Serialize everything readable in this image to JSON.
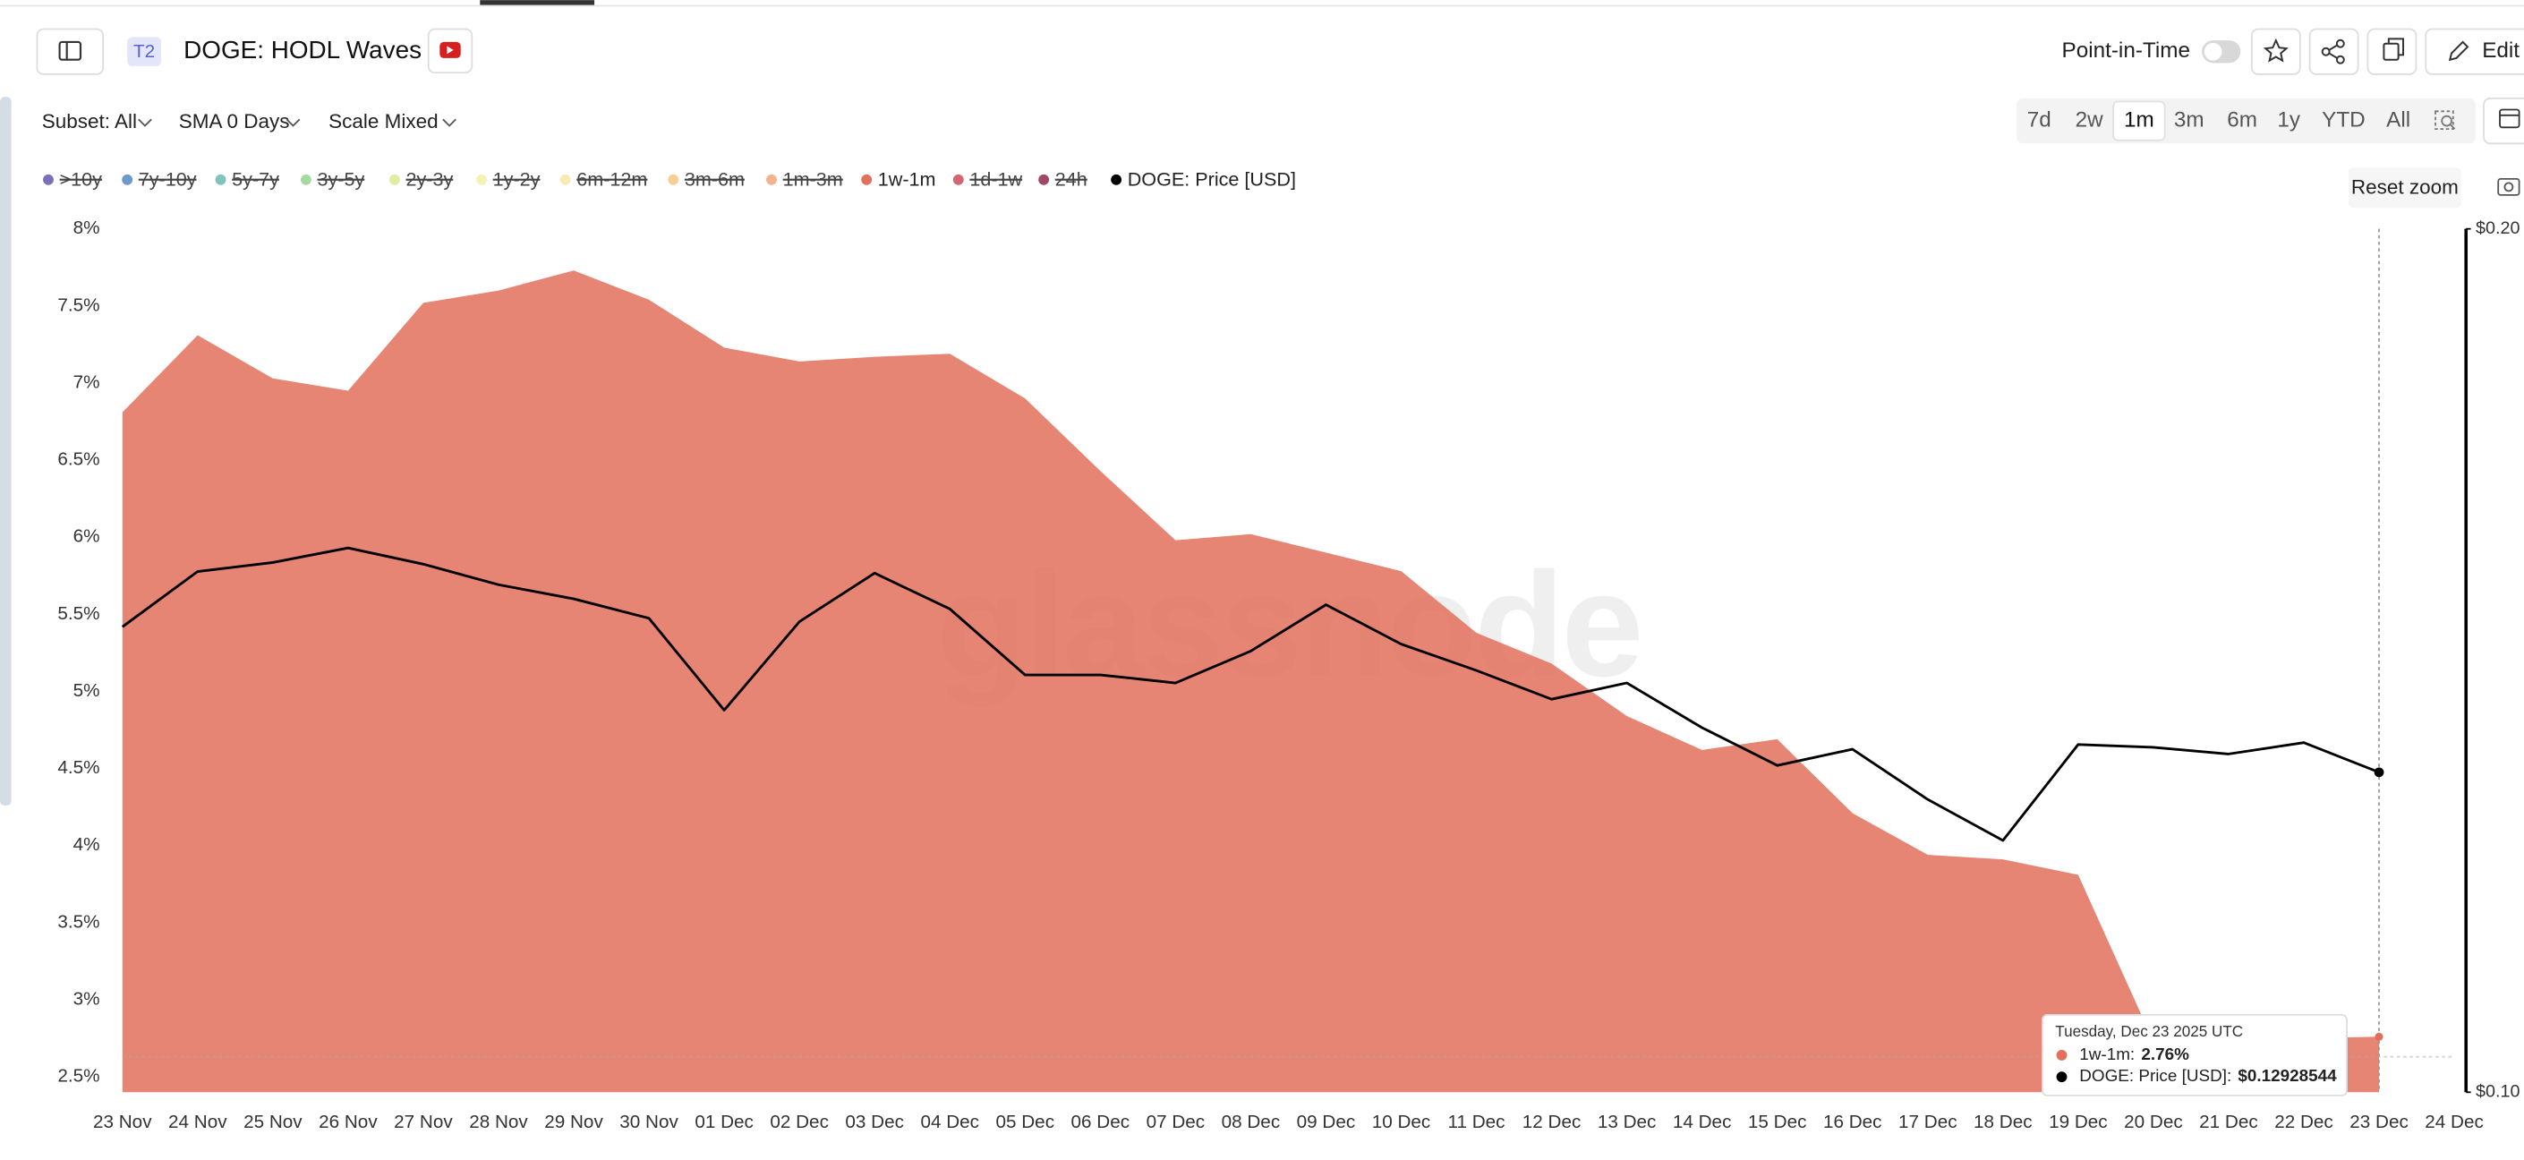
{
  "header": {
    "badge": "T2",
    "title": "DOGE: HODL Waves",
    "point_in_time": "Point-in-Time",
    "edit": "Edit"
  },
  "toolbar": {
    "subset": "Subset: All",
    "sma": "SMA 0 Days",
    "scale": "Scale Mixed",
    "ranges": [
      "7d",
      "2w",
      "1m",
      "3m",
      "6m",
      "1y",
      "YTD",
      "All"
    ],
    "active_range": "1m",
    "reset_zoom": "Reset zoom"
  },
  "chart_data": {
    "type": "area_line",
    "watermark": "glassnode",
    "categories": [
      "23 Nov",
      "24 Nov",
      "25 Nov",
      "26 Nov",
      "27 Nov",
      "28 Nov",
      "29 Nov",
      "30 Nov",
      "01 Dec",
      "02 Dec",
      "03 Dec",
      "04 Dec",
      "05 Dec",
      "06 Dec",
      "07 Dec",
      "08 Dec",
      "09 Dec",
      "10 Dec",
      "11 Dec",
      "12 Dec",
      "13 Dec",
      "14 Dec",
      "15 Dec",
      "16 Dec",
      "17 Dec",
      "18 Dec",
      "19 Dec",
      "20 Dec",
      "21 Dec",
      "22 Dec",
      "23 Dec",
      "24 Dec"
    ],
    "series": [
      {
        "name": "1w-1m",
        "color": "#e2705a",
        "values": [
          6.81,
          7.31,
          7.03,
          6.95,
          7.52,
          7.6,
          7.73,
          7.54,
          7.23,
          7.14,
          7.17,
          7.19,
          6.9,
          6.43,
          5.98,
          6.02,
          5.9,
          5.78,
          5.38,
          5.18,
          4.84,
          4.62,
          4.69,
          4.21,
          3.94,
          3.91,
          3.81,
          2.73,
          2.74,
          2.75,
          2.76,
          null
        ]
      },
      {
        "name": "DOGE: Price [USD]",
        "color": "#000000",
        "axis": "y2",
        "values": [
          0.1453,
          0.1519,
          0.153,
          0.1548,
          0.1528,
          0.1503,
          0.1486,
          0.1463,
          0.1359,
          0.1459,
          0.1517,
          0.1474,
          0.1398,
          0.1398,
          0.1389,
          0.1425,
          0.1479,
          0.1433,
          0.1403,
          0.1371,
          0.1389,
          0.134,
          0.13,
          0.1317,
          0.1265,
          0.1224,
          0.1322,
          0.1319,
          0.1312,
          0.1324,
          0.12928544,
          null
        ]
      }
    ],
    "hidden_series": [
      {
        "name": ">10y",
        "color": "#5b4ea8"
      },
      {
        "name": "7y-10y",
        "color": "#4a7fc1"
      },
      {
        "name": "5y-7y",
        "color": "#5fb5ad"
      },
      {
        "name": "3y-5y",
        "color": "#8fd08a"
      },
      {
        "name": "2y-3y",
        "color": "#d6e88a"
      },
      {
        "name": "1y-2y",
        "color": "#f0f0a0"
      },
      {
        "name": "6m-12m",
        "color": "#f8e3a0"
      },
      {
        "name": "3m-6m",
        "color": "#f7c27a"
      },
      {
        "name": "1m-3m",
        "color": "#f0a070"
      },
      {
        "name": "1d-1w",
        "color": "#c94050"
      },
      {
        "name": "24h",
        "color": "#8a1a40"
      }
    ],
    "ylim": [
      2.4,
      8
    ],
    "yticks": [
      {
        "value": 2.5,
        "label": "2.5%"
      },
      {
        "value": 3,
        "label": "3%"
      },
      {
        "value": 3.5,
        "label": "3.5%"
      },
      {
        "value": 4,
        "label": "4%"
      },
      {
        "value": 4.5,
        "label": "4.5%"
      },
      {
        "value": 5,
        "label": "5%"
      },
      {
        "value": 5.5,
        "label": "5.5%"
      },
      {
        "value": 6,
        "label": "6%"
      },
      {
        "value": 6.5,
        "label": "6.5%"
      },
      {
        "value": 7,
        "label": "7%"
      },
      {
        "value": 7.5,
        "label": "7.5%"
      },
      {
        "value": 8,
        "label": "8%"
      }
    ],
    "y2lim": [
      0.1,
      0.2
    ],
    "y2_log": true,
    "y2ticks": [
      {
        "value": 0.2,
        "label": "$0.20"
      },
      {
        "value": 0.1,
        "label": "$0.10"
      }
    ],
    "grid": false,
    "tooltip": {
      "title": "Tuesday, Dec 23 2025 UTC",
      "lines": [
        {
          "label": "1w-1m:",
          "value": "2.76%"
        },
        {
          "label": "DOGE: Price [USD]:",
          "value": "$0.12928544"
        }
      ]
    }
  }
}
